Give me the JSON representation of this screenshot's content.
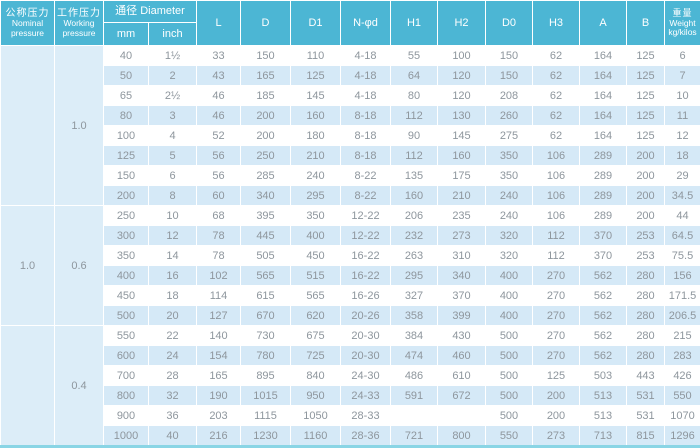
{
  "colors": {
    "header_bg": "#4cb6d4",
    "header_text": "#ffffff",
    "stripe_bg": "#d5e9f7",
    "panel_bg": "#dcedf8",
    "bottom_line": "#8ad5e5",
    "data_text": "#8e969d"
  },
  "header": {
    "nominal_pressure": {
      "zh": "公称压力",
      "en1": "Nominal",
      "en2": "pressure"
    },
    "working_pressure": {
      "zh": "工作压力",
      "en1": "Working",
      "en2": "pressure"
    },
    "diameter": {
      "label": "通径 Diameter",
      "mm": "mm",
      "inch": "inch"
    },
    "columns": [
      "L",
      "D",
      "D1",
      "N-φd",
      "H1",
      "H2",
      "D0",
      "H3",
      "A",
      "B"
    ],
    "weight": {
      "zh": "重量",
      "en": "Weight",
      "unit": "kg/kilos"
    }
  },
  "pressure_groups": [
    {
      "nominal": "",
      "working": "1.0",
      "row_count": 8
    },
    {
      "nominal": "1.0",
      "working": "0.6",
      "row_count": 6
    },
    {
      "nominal": "",
      "working": "0.4",
      "row_count": 6
    }
  ],
  "rows": [
    [
      "40",
      "1½",
      "33",
      "150",
      "110",
      "4-18",
      "55",
      "100",
      "150",
      "62",
      "164",
      "125",
      "6"
    ],
    [
      "50",
      "2",
      "43",
      "165",
      "125",
      "4-18",
      "64",
      "120",
      "150",
      "62",
      "164",
      "125",
      "7"
    ],
    [
      "65",
      "2½",
      "46",
      "185",
      "145",
      "4-18",
      "80",
      "120",
      "208",
      "62",
      "164",
      "125",
      "10"
    ],
    [
      "80",
      "3",
      "46",
      "200",
      "160",
      "8-18",
      "112",
      "130",
      "260",
      "62",
      "164",
      "125",
      "11"
    ],
    [
      "100",
      "4",
      "52",
      "200",
      "180",
      "8-18",
      "90",
      "145",
      "275",
      "62",
      "164",
      "125",
      "12"
    ],
    [
      "125",
      "5",
      "56",
      "250",
      "210",
      "8-18",
      "112",
      "160",
      "350",
      "106",
      "289",
      "200",
      "18"
    ],
    [
      "150",
      "6",
      "56",
      "285",
      "240",
      "8-22",
      "135",
      "175",
      "350",
      "106",
      "289",
      "200",
      "29"
    ],
    [
      "200",
      "8",
      "60",
      "340",
      "295",
      "8-22",
      "160",
      "210",
      "240",
      "106",
      "289",
      "200",
      "34.5"
    ],
    [
      "250",
      "10",
      "68",
      "395",
      "350",
      "12-22",
      "206",
      "235",
      "240",
      "106",
      "289",
      "200",
      "44"
    ],
    [
      "300",
      "12",
      "78",
      "445",
      "400",
      "12-22",
      "232",
      "273",
      "320",
      "112",
      "370",
      "253",
      "64.5"
    ],
    [
      "350",
      "14",
      "78",
      "505",
      "450",
      "16-22",
      "263",
      "310",
      "320",
      "112",
      "370",
      "253",
      "75.5"
    ],
    [
      "400",
      "16",
      "102",
      "565",
      "515",
      "16-22",
      "295",
      "340",
      "400",
      "270",
      "562",
      "280",
      "156"
    ],
    [
      "450",
      "18",
      "114",
      "615",
      "565",
      "16-26",
      "327",
      "370",
      "400",
      "270",
      "562",
      "280",
      "171.5"
    ],
    [
      "500",
      "20",
      "127",
      "670",
      "620",
      "20-26",
      "358",
      "399",
      "400",
      "270",
      "562",
      "280",
      "206.5"
    ],
    [
      "550",
      "22",
      "140",
      "730",
      "675",
      "20-30",
      "384",
      "430",
      "500",
      "270",
      "562",
      "280",
      "215"
    ],
    [
      "600",
      "24",
      "154",
      "780",
      "725",
      "20-30",
      "474",
      "460",
      "500",
      "270",
      "562",
      "280",
      "283"
    ],
    [
      "700",
      "28",
      "165",
      "895",
      "840",
      "24-30",
      "486",
      "610",
      "500",
      "125",
      "503",
      "443",
      "426"
    ],
    [
      "800",
      "32",
      "190",
      "1015",
      "950",
      "24-33",
      "591",
      "672",
      "500",
      "200",
      "513",
      "531",
      "550"
    ],
    [
      "900",
      "36",
      "203",
      "1115",
      "1050",
      "28-33",
      "",
      "",
      "500",
      "200",
      "513",
      "531",
      "1070"
    ],
    [
      "1000",
      "40",
      "216",
      "1230",
      "1160",
      "28-36",
      "721",
      "800",
      "550",
      "273",
      "713",
      "815",
      "1296"
    ]
  ]
}
